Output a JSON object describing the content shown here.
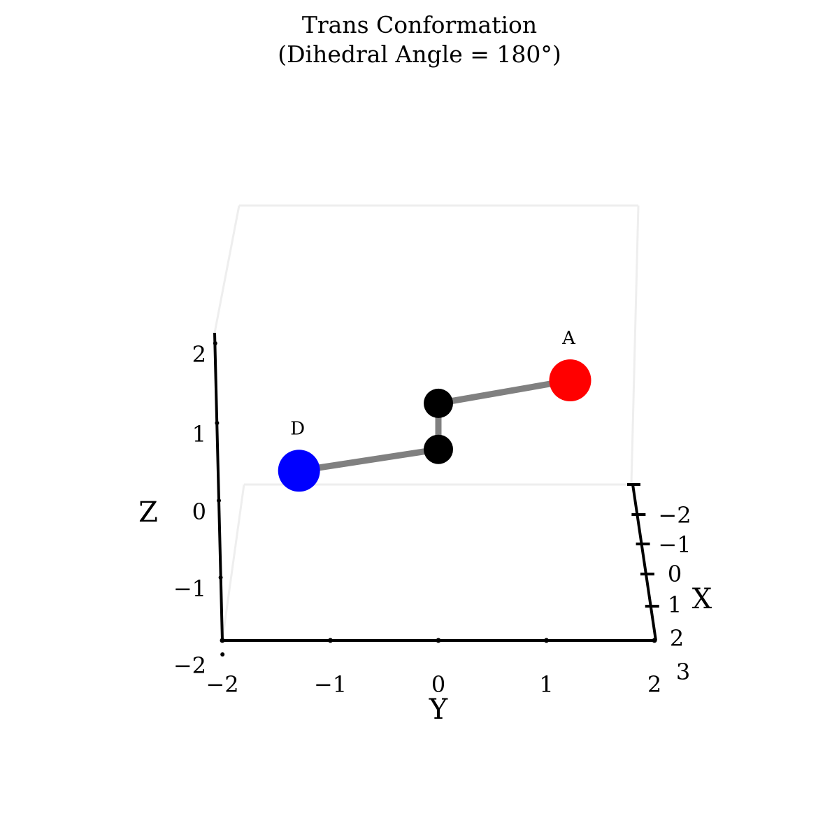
{
  "chart_data": {
    "type": "scatter",
    "title": "Trans Conformation",
    "subtitle": "(Dihedral Angle = 180°)",
    "axes": {
      "x": {
        "label": "X",
        "ticks": [
          "−2",
          "−1",
          "0",
          "1",
          "2",
          "3"
        ]
      },
      "y": {
        "label": "Y",
        "ticks": [
          "−2",
          "−1",
          "0",
          "1",
          "2"
        ],
        "range": [
          -2,
          2
        ]
      },
      "z": {
        "label": "Z",
        "ticks": [
          "−2",
          "−1",
          "0",
          "1",
          "2"
        ],
        "range": [
          -2,
          2.4
        ]
      }
    },
    "grid": false,
    "atoms": [
      {
        "label": "A",
        "y": 1.22,
        "z": 1.6,
        "color": "#ff0000"
      },
      {
        "label": "",
        "y": 0.0,
        "z": 1.32,
        "color": "#000000"
      },
      {
        "label": "",
        "y": 0.0,
        "z": 0.76,
        "color": "#000000"
      },
      {
        "label": "D",
        "y": -1.29,
        "z": 0.5,
        "color": "#0000ff"
      }
    ],
    "bonds": [
      [
        0,
        1
      ],
      [
        1,
        2
      ],
      [
        2,
        3
      ]
    ],
    "bond_color": "#808080"
  }
}
